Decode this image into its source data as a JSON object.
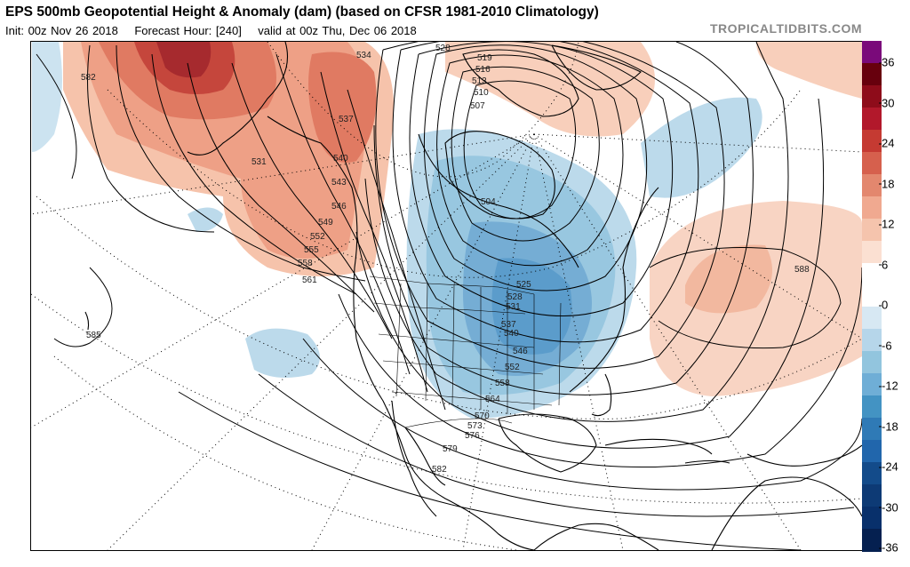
{
  "header": {
    "title": "EPS 500mb Geopotential Height & Anomaly (dam) (based on CFSR 1981-2010 Climatology)",
    "init": "Init: 00z Nov 26 2018",
    "forecast_hour": "Forecast Hour: [240]",
    "valid": "valid at 00z Thu, Dec 06 2018",
    "credit": "TROPICALTIDBITS.COM"
  },
  "colorbar": {
    "ticks": [
      "36",
      "30",
      "24",
      "18",
      "12",
      "6",
      "0",
      "-6",
      "-12",
      "-18",
      "-24",
      "-30",
      "-36"
    ],
    "colors": [
      "#7a0a7a",
      "#67000d",
      "#8e0c1a",
      "#b2182b",
      "#c53a32",
      "#d6604d",
      "#e3876e",
      "#f0a990",
      "#f5c4ad",
      "#fbe0d2",
      "#ffffff",
      "#ffffff",
      "#d7e8f3",
      "#b6d6ea",
      "#92c5de",
      "#6faed6",
      "#4393c3",
      "#2f7ab6",
      "#2166ac",
      "#134b8a",
      "#0d3a75",
      "#08306b",
      "#052050"
    ]
  },
  "contour_labels": [
    {
      "id": "582a",
      "text": "582"
    },
    {
      "id": "528a",
      "text": "528"
    },
    {
      "id": "534",
      "text": "534"
    },
    {
      "id": "519",
      "text": "519"
    },
    {
      "id": "516",
      "text": "516"
    },
    {
      "id": "513",
      "text": "513"
    },
    {
      "id": "510",
      "text": "510"
    },
    {
      "id": "507",
      "text": "507"
    },
    {
      "id": "537a",
      "text": "537"
    },
    {
      "id": "531",
      "text": "531"
    },
    {
      "id": "540a",
      "text": "540"
    },
    {
      "id": "543",
      "text": "543"
    },
    {
      "id": "546a",
      "text": "546"
    },
    {
      "id": "549",
      "text": "549"
    },
    {
      "id": "552a",
      "text": "552"
    },
    {
      "id": "555",
      "text": "555"
    },
    {
      "id": "558a",
      "text": "558"
    },
    {
      "id": "561",
      "text": "561"
    },
    {
      "id": "504",
      "text": "504"
    },
    {
      "id": "525",
      "text": "525"
    },
    {
      "id": "528b",
      "text": "528"
    },
    {
      "id": "531b",
      "text": "531"
    },
    {
      "id": "537b",
      "text": "537"
    },
    {
      "id": "540b",
      "text": "540"
    },
    {
      "id": "546b",
      "text": "546"
    },
    {
      "id": "552b",
      "text": "552"
    },
    {
      "id": "558b",
      "text": "558"
    },
    {
      "id": "564",
      "text": "564"
    },
    {
      "id": "570",
      "text": "570"
    },
    {
      "id": "573",
      "text": "573"
    },
    {
      "id": "576",
      "text": "576"
    },
    {
      "id": "579",
      "text": "579"
    },
    {
      "id": "582b",
      "text": "582"
    },
    {
      "id": "585",
      "text": "585"
    },
    {
      "id": "588",
      "text": "588"
    }
  ]
}
